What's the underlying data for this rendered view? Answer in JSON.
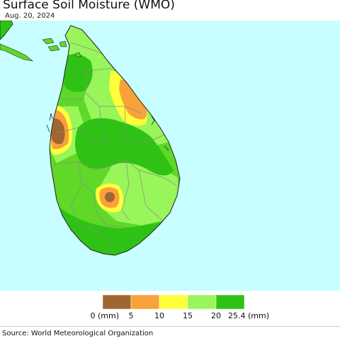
{
  "title": "Surface Soil Moisture (WMO)",
  "date": "Aug. 20, 2024",
  "source": "Source: World Meteorological Organization",
  "legend": {
    "bins": [
      {
        "name": "0-5",
        "color": "#a06631"
      },
      {
        "name": "5-10",
        "color": "#f9a13a"
      },
      {
        "name": "10-15",
        "color": "#ffff3c"
      },
      {
        "name": "15-20",
        "color": "#98f55a"
      },
      {
        "name": "20-25.4",
        "color": "#2ec314"
      }
    ],
    "labels": [
      "0 (mm)",
      "5",
      "10",
      "15",
      "20",
      "25.4 (mm)"
    ]
  },
  "colors": {
    "ocean": "#c8feff",
    "india": "#2ec314",
    "island_base": "#5fd828",
    "district_lines": "#8a8a8a",
    "coast": "#222222"
  }
}
